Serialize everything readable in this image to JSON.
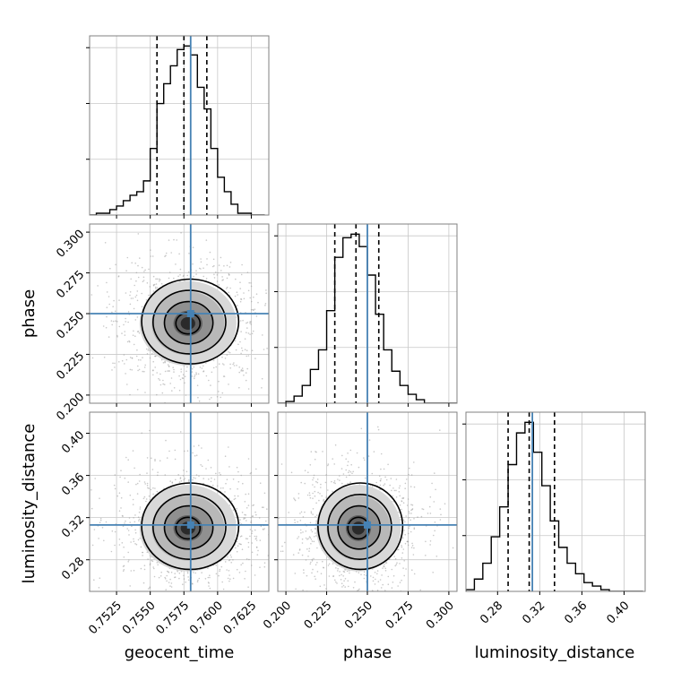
{
  "chart_data": {
    "type": "corner",
    "parameters": [
      "geocent_time",
      "phase",
      "luminosity_distance"
    ],
    "truths": {
      "geocent_time": 0.758,
      "phase": 0.25,
      "luminosity_distance": 0.313
    },
    "colors": {
      "truth": "#4682b4",
      "hist": "#000000",
      "grid": "#c8c8c8",
      "frame": "#808080"
    },
    "grid": true,
    "axes": {
      "geocent_time": {
        "label": "geocent_time",
        "range": [
          0.7505,
          0.7638
        ],
        "ticks": [
          0.7525,
          0.755,
          0.7575,
          0.76,
          0.7625
        ],
        "tick_labels": [
          "0.7525",
          "0.7550",
          "0.7575",
          "0.7600",
          "0.7625"
        ],
        "quantiles": [
          0.7555,
          0.7575,
          0.7592
        ]
      },
      "phase": {
        "label": "phase",
        "range": [
          0.195,
          0.305
        ],
        "ticks": [
          0.2,
          0.225,
          0.25,
          0.275,
          0.3
        ],
        "tick_labels": [
          "0.200",
          "0.225",
          "0.250",
          "0.275",
          "0.300"
        ],
        "quantiles": [
          0.23,
          0.243,
          0.257
        ]
      },
      "luminosity_distance": {
        "label": "luminosity_distance",
        "range": [
          0.25,
          0.42
        ],
        "ticks": [
          0.28,
          0.32,
          0.36,
          0.4
        ],
        "tick_labels": [
          "0.28",
          "0.32",
          "0.36",
          "0.40"
        ],
        "quantiles": [
          0.29,
          0.31,
          0.334
        ]
      }
    },
    "histograms": {
      "geocent_time": {
        "edges": [
          0.7505,
          0.751,
          0.7515,
          0.752,
          0.7525,
          0.753,
          0.7535,
          0.754,
          0.7545,
          0.755,
          0.7555,
          0.756,
          0.7565,
          0.757,
          0.7575,
          0.758,
          0.7585,
          0.759,
          0.7595,
          0.76,
          0.7605,
          0.761,
          0.7615,
          0.762,
          0.7625,
          0.763,
          0.7635
        ],
        "counts": [
          0,
          1,
          1,
          3,
          5,
          8,
          11,
          13,
          19,
          37,
          62,
          73,
          83,
          92,
          94,
          89,
          71,
          59,
          37,
          21,
          13,
          6,
          1,
          1,
          0,
          0
        ]
      },
      "phase": {
        "edges": [
          0.195,
          0.2,
          0.205,
          0.21,
          0.215,
          0.22,
          0.225,
          0.23,
          0.235,
          0.24,
          0.245,
          0.25,
          0.255,
          0.26,
          0.265,
          0.27,
          0.275,
          0.28,
          0.285,
          0.29,
          0.295,
          0.3,
          0.305
        ],
        "counts": [
          0,
          1,
          4,
          10,
          19,
          30,
          52,
          82,
          93,
          95,
          88,
          72,
          50,
          30,
          18,
          10,
          5,
          2,
          0,
          0,
          0,
          0
        ]
      },
      "luminosity_distance": {
        "edges": [
          0.25,
          0.258,
          0.266,
          0.274,
          0.282,
          0.29,
          0.298,
          0.306,
          0.314,
          0.322,
          0.33,
          0.338,
          0.346,
          0.354,
          0.362,
          0.37,
          0.378,
          0.386,
          0.394,
          0.402,
          0.41,
          0.418
        ],
        "counts": [
          1,
          7,
          16,
          31,
          48,
          72,
          90,
          96,
          79,
          60,
          40,
          25,
          16,
          10,
          5,
          3,
          1,
          0,
          0,
          0,
          0
        ]
      }
    },
    "contours": {
      "phase|geocent_time": {
        "center": [
          0.7578,
          0.244
        ],
        "sigma": [
          0.0018,
          0.013
        ],
        "levels": [
          0.5,
          1.0,
          1.5,
          2.0
        ]
      },
      "luminosity_distance|geocent_time": {
        "center": [
          0.7578,
          0.31
        ],
        "sigma": [
          0.0018,
          0.0205
        ],
        "levels": [
          0.5,
          1.0,
          1.5,
          2.0
        ]
      },
      "luminosity_distance|phase": {
        "center": [
          0.2445,
          0.31
        ],
        "sigma": [
          0.013,
          0.0205
        ],
        "levels": [
          0.5,
          1.0,
          1.5,
          2.0
        ]
      }
    }
  }
}
